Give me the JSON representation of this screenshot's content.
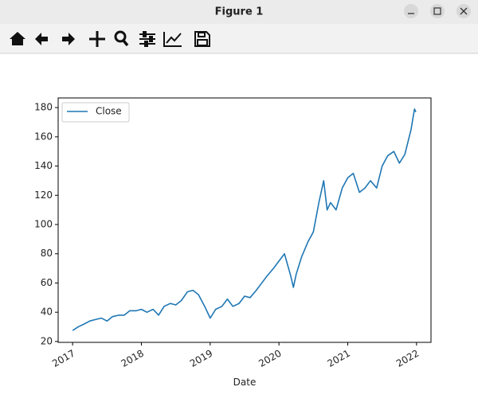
{
  "window": {
    "title": "Figure 1"
  },
  "chart_data": {
    "type": "line",
    "xlabel": "Date",
    "x": [
      2017.0,
      2017.08,
      2017.17,
      2017.25,
      2017.33,
      2017.42,
      2017.5,
      2017.58,
      2017.67,
      2017.75,
      2017.83,
      2017.92,
      2018.0,
      2018.08,
      2018.17,
      2018.25,
      2018.33,
      2018.42,
      2018.5,
      2018.58,
      2018.67,
      2018.75,
      2018.83,
      2018.92,
      2019.0,
      2019.08,
      2019.17,
      2019.25,
      2019.33,
      2019.42,
      2019.5,
      2019.58,
      2019.67,
      2019.75,
      2019.83,
      2019.92,
      2020.0,
      2020.08,
      2020.17,
      2020.21,
      2020.25,
      2020.33,
      2020.42,
      2020.5,
      2020.58,
      2020.65,
      2020.7,
      2020.75,
      2020.83,
      2020.92,
      2021.0,
      2021.08,
      2021.17,
      2021.25,
      2021.33,
      2021.42,
      2021.5,
      2021.58,
      2021.67,
      2021.75,
      2021.83,
      2021.92,
      2021.97,
      2021.99
    ],
    "series": [
      {
        "name": "Close",
        "color": "#1f77b4",
        "values": [
          27.5,
          30,
          32,
          34,
          35,
          36,
          34,
          37,
          38,
          38,
          41,
          41,
          42,
          40,
          42,
          38,
          44,
          46,
          45,
          48,
          54,
          55,
          52,
          44,
          36,
          42,
          44,
          49,
          44,
          46,
          51,
          50,
          55,
          60,
          65,
          70,
          75,
          80,
          65,
          57,
          66,
          78,
          88,
          95,
          115,
          130,
          110,
          115,
          110,
          125,
          132,
          135,
          122,
          125,
          130,
          125,
          140,
          147,
          150,
          142,
          148,
          165,
          179,
          177
        ]
      }
    ],
    "xlim": [
      2016.79,
      2022.21
    ],
    "xticks": [
      2017,
      2018,
      2019,
      2020,
      2021,
      2022
    ],
    "ylim": [
      19.4,
      186.6
    ],
    "yticks": [
      20,
      40,
      60,
      80,
      100,
      120,
      140,
      160,
      180
    ],
    "legend": "upper left"
  }
}
